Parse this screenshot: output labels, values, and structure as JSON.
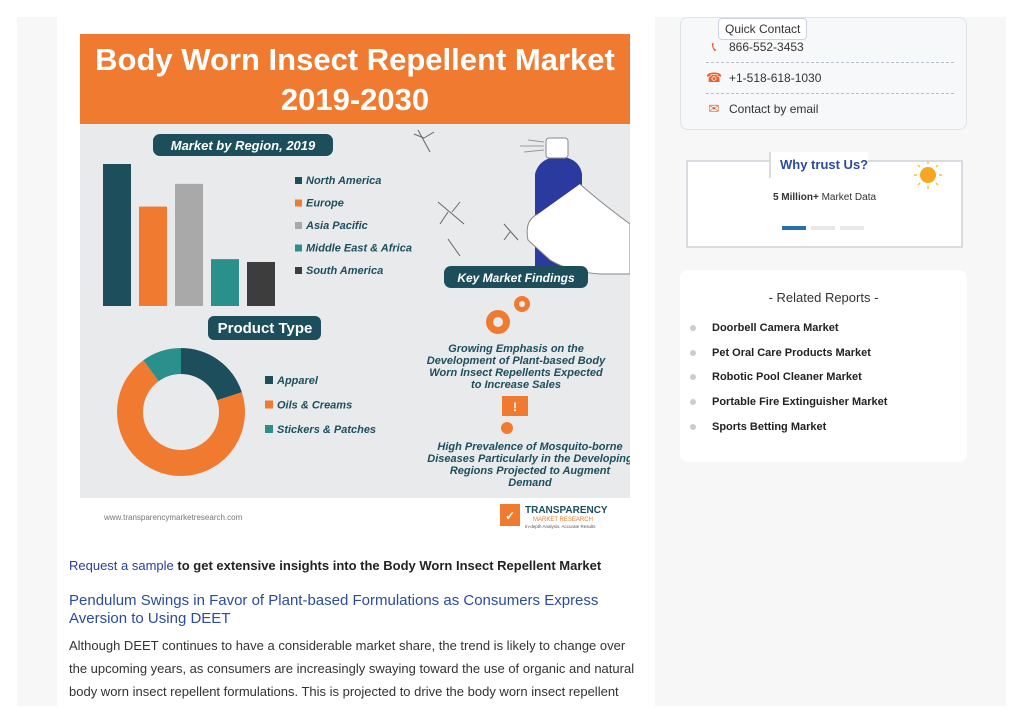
{
  "infographic": {
    "title_line1": "Body Worn Insect Repellent Market",
    "title_line2": "2019-2030",
    "region_heading": "Market by Region, 2019",
    "region_legend": [
      {
        "label": "North America",
        "color": "#1d4e5c"
      },
      {
        "label": "Europe",
        "color": "#f07b30"
      },
      {
        "label": "Asia Pacific",
        "color": "#a9a9a9"
      },
      {
        "label": "Middle East & Africa",
        "color": "#2b8f8c"
      },
      {
        "label": "South America",
        "color": "#3d3d3d"
      }
    ],
    "key_findings_heading": "Key Market Findings",
    "product_heading": "Product Type",
    "product_legend": [
      {
        "label": "Apparel",
        "color": "#1d4e5c"
      },
      {
        "label": "Oils & Creams",
        "color": "#f07b30"
      },
      {
        "label": "Stickers & Patches",
        "color": "#2b8f8c"
      }
    ],
    "finding1": [
      "Growing Emphasis on the",
      "Development of Plant-based Body",
      "Worn Insect Repellents Expected",
      "to Increase Sales"
    ],
    "finding2": [
      "High Prevalence of Mosquito-borne",
      "Diseases Particularly in the Developing",
      "Regions Projected to Augment",
      "Demand"
    ],
    "footer_url": "www.transparencymarketresearch.com",
    "logo_text": "TRANSPARENCY",
    "logo_sub": "MARKET RESEARCH",
    "logo_tag": "In-depth Analysis. Accurate Results",
    "colors": {
      "banner": "#f07b30",
      "navy": "#1d4e5c"
    }
  },
  "chart_data": [
    {
      "type": "bar",
      "title": "Market by Region, 2019",
      "categories": [
        "North America",
        "Europe",
        "Asia Pacific",
        "Middle East & Africa",
        "South America"
      ],
      "values": [
        100,
        70,
        86,
        33,
        31
      ],
      "colors": [
        "#1d4e5c",
        "#f07b30",
        "#a9a9a9",
        "#2b8f8c",
        "#3d3d3d"
      ]
    },
    {
      "type": "pie",
      "title": "Product Type",
      "categories": [
        "Apparel",
        "Oils & Creams",
        "Stickers & Patches"
      ],
      "values": [
        20,
        70,
        10
      ],
      "colors": [
        "#1d4e5c",
        "#f07b30",
        "#2b8f8c"
      ]
    }
  ],
  "article": {
    "cta_link": "Request a sample",
    "cta_text": " to get extensive insights into the Body Worn Insect Repellent Market",
    "heading": "Pendulum Swings in Favor of Plant-based Formulations as Consumers Express Aversion to Using DEET",
    "body": "Although DEET continues to have a considerable market share, the trend is likely to change over the upcoming years, as consumers are increasingly swaying toward the use of organic and natural body worn insect repellent formulations. This is projected to drive the body worn insect repellent"
  },
  "contact": {
    "tab": "Quick Contact",
    "phone1": "866-552-3453",
    "phone2": "+1-518-618-1030",
    "email": "Contact by email"
  },
  "trust": {
    "title": "Why trust Us?",
    "stat_bold": "5 Million+",
    "stat_text": " Market Data"
  },
  "related": {
    "title": "- Related Reports -",
    "items": [
      "Doorbell Camera Market",
      "Pet Oral Care Products Market",
      "Robotic Pool Cleaner Market",
      "Portable Fire Extinguisher Market",
      "Sports Betting Market"
    ]
  }
}
